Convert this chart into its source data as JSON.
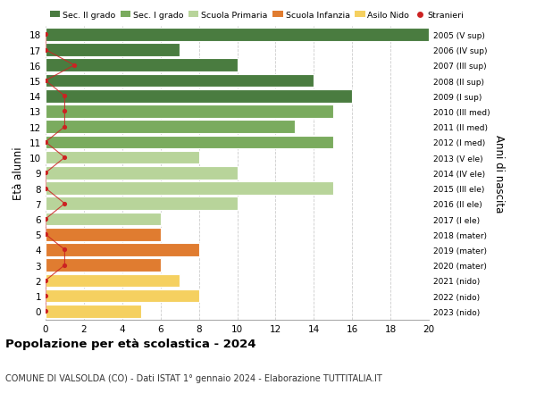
{
  "ages": [
    18,
    17,
    16,
    15,
    14,
    13,
    12,
    11,
    10,
    9,
    8,
    7,
    6,
    5,
    4,
    3,
    2,
    1,
    0
  ],
  "years": [
    "2005 (V sup)",
    "2006 (IV sup)",
    "2007 (III sup)",
    "2008 (II sup)",
    "2009 (I sup)",
    "2010 (III med)",
    "2011 (II med)",
    "2012 (I med)",
    "2013 (V ele)",
    "2014 (IV ele)",
    "2015 (III ele)",
    "2016 (II ele)",
    "2017 (I ele)",
    "2018 (mater)",
    "2019 (mater)",
    "2020 (mater)",
    "2021 (nido)",
    "2022 (nido)",
    "2023 (nido)"
  ],
  "bar_values": [
    20,
    7,
    10,
    14,
    16,
    15,
    13,
    15,
    8,
    10,
    15,
    10,
    6,
    6,
    8,
    6,
    7,
    8,
    5
  ],
  "bar_colors": [
    "#4a7c40",
    "#4a7c40",
    "#4a7c40",
    "#4a7c40",
    "#4a7c40",
    "#7aab5e",
    "#7aab5e",
    "#7aab5e",
    "#b8d49a",
    "#b8d49a",
    "#b8d49a",
    "#b8d49a",
    "#b8d49a",
    "#e07c30",
    "#e07c30",
    "#e07c30",
    "#f5d060",
    "#f5d060",
    "#f5d060"
  ],
  "stranieri_x": [
    0,
    0,
    1.5,
    0,
    1,
    1,
    1,
    0,
    1,
    0,
    0,
    1,
    0,
    0,
    1,
    1,
    0,
    0,
    0
  ],
  "legend_labels": [
    "Sec. II grado",
    "Sec. I grado",
    "Scuola Primaria",
    "Scuola Infanzia",
    "Asilo Nido",
    "Stranieri"
  ],
  "legend_colors": [
    "#4a7c40",
    "#7aab5e",
    "#b8d49a",
    "#e07c30",
    "#f5d060",
    "#cc2222"
  ],
  "title": "Popolazione per età scolastica - 2024",
  "subtitle": "COMUNE DI VALSOLDA (CO) - Dati ISTAT 1° gennaio 2024 - Elaborazione TUTTITALIA.IT",
  "ylabel_left": "Età alunni",
  "ylabel_right": "Anni di nascita",
  "xlim": [
    0,
    20
  ],
  "xticks": [
    0,
    2,
    4,
    6,
    8,
    10,
    12,
    14,
    16,
    18,
    20
  ],
  "bar_height": 0.85,
  "dot_color": "#cc2222",
  "line_color": "#cc2222",
  "bg_color": "#ffffff",
  "grid_color": "#cccccc",
  "bar_edge_color": "#ffffff"
}
